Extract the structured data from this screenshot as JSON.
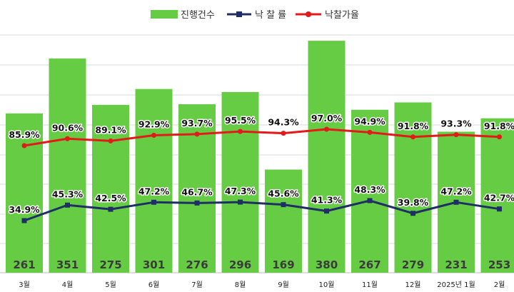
{
  "chart_data": {
    "type": "bar",
    "categories": [
      "3월",
      "4월",
      "5월",
      "6월",
      "7월",
      "8월",
      "9월",
      "10월",
      "11월",
      "12월",
      "2025년 1월",
      "2월"
    ],
    "grid": true,
    "legend_position": "top",
    "series": [
      {
        "name": "진행건수",
        "type": "bar",
        "color": "#66cc44",
        "values": [
          261,
          351,
          275,
          301,
          276,
          296,
          169,
          380,
          267,
          279,
          231,
          253
        ],
        "labels": [
          "261",
          "351",
          "275",
          "301",
          "276",
          "296",
          "169",
          "380",
          "267",
          "279",
          "231",
          "253"
        ]
      },
      {
        "name": "낙 찰 률",
        "type": "line",
        "color": "#1f2f66",
        "values": [
          34.9,
          45.3,
          42.5,
          47.2,
          46.7,
          47.3,
          45.6,
          41.3,
          48.3,
          39.8,
          47.2,
          42.7
        ],
        "labels": [
          "34.9%",
          "45.3%",
          "42.5%",
          "47.2%",
          "46.7%",
          "47.3%",
          "45.6%",
          "41.3%",
          "48.3%",
          "39.8%",
          "47.2%",
          "42.7%"
        ]
      },
      {
        "name": "낙찰가율",
        "type": "line",
        "color": "#e31a1a",
        "values": [
          85.9,
          90.6,
          89.1,
          92.9,
          93.7,
          95.5,
          94.3,
          97.0,
          94.9,
          91.8,
          93.3,
          91.8
        ],
        "labels": [
          "85.9%",
          "90.6%",
          "89.1%",
          "92.9%",
          "93.7%",
          "95.5%",
          "94.3%",
          "97.0%",
          "94.9%",
          "91.8%",
          "93.3%",
          "91.8%"
        ]
      }
    ]
  }
}
